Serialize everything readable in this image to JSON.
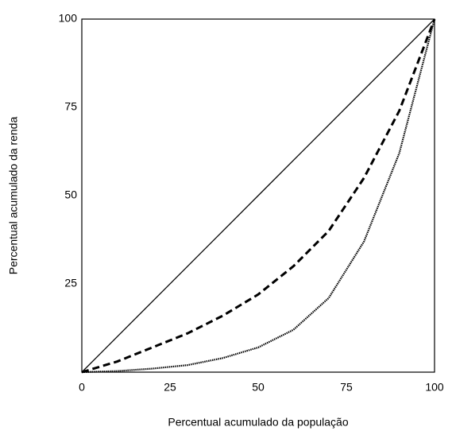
{
  "chart_data": {
    "type": "line",
    "xlabel": "Percentual acumulado da população",
    "ylabel": "Percentual acumulado da renda",
    "x": [
      0,
      10,
      20,
      30,
      40,
      50,
      60,
      70,
      80,
      90,
      100
    ],
    "series": [
      {
        "color": "#000000",
        "style": "solid",
        "values": [
          0,
          10,
          20,
          30,
          40,
          50,
          60,
          70,
          80,
          90,
          100
        ]
      },
      {
        "color": "#000000",
        "style": "dashed",
        "values": [
          0,
          3,
          7,
          11,
          16,
          22,
          30,
          40,
          55,
          74,
          100
        ]
      },
      {
        "color": "#000000",
        "style": "dotted",
        "values": [
          0,
          0.3,
          1,
          2,
          4,
          7,
          12,
          21,
          37,
          62,
          100
        ]
      }
    ],
    "xlim": [
      0,
      100
    ],
    "xticks": [
      0,
      25,
      50,
      75,
      100
    ],
    "ylim": [
      0,
      100
    ],
    "yticks": [
      25,
      50,
      75,
      100
    ],
    "grid": false
  }
}
